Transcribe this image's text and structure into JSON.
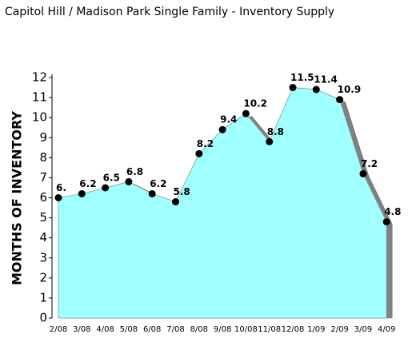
{
  "chart_data": {
    "type": "area",
    "title": "Capitol Hill / Madison Park Single Family - Inventory Supply",
    "y_label": "MONTHS OF INVENTORY",
    "categories": [
      "2/08",
      "3/08",
      "4/08",
      "5/08",
      "6/08",
      "7/08",
      "8/08",
      "9/08",
      "10/08",
      "11/08",
      "12/08",
      "1/09",
      "2/09",
      "3/09",
      "4/09"
    ],
    "values": [
      6,
      6.2,
      6.5,
      6.8,
      6.2,
      5.8,
      8.2,
      9.4,
      10.2,
      8.8,
      11.5,
      11.4,
      10.9,
      7.2,
      4.8
    ],
    "value_labels": [
      "6.",
      "6.2",
      "6.5",
      "6.8",
      "6.2",
      "5.8",
      "8.2",
      "9.4",
      "10.2",
      "8.8",
      "11.5",
      "11.4",
      "10.9",
      "7.2",
      "4.8"
    ],
    "color": "#a0ffff",
    "ylim": [
      0,
      12
    ],
    "yticks": [
      0,
      1,
      2,
      3,
      4,
      5,
      6,
      7,
      8,
      9,
      10,
      11,
      12
    ]
  }
}
